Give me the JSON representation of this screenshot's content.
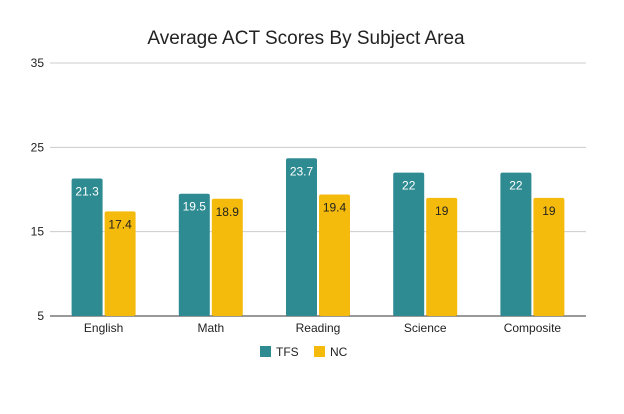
{
  "chart_data": {
    "type": "bar",
    "title": "Average ACT Scores By Subject Area",
    "xlabel": "",
    "ylabel": "",
    "ylim": [
      5,
      35
    ],
    "yticks": [
      5,
      15,
      25,
      35
    ],
    "grid": true,
    "legend_position": "bottom",
    "categories": [
      "English",
      "Math",
      "Reading",
      "Science",
      "Composite"
    ],
    "series": [
      {
        "name": "TFS",
        "color": "#2e8b92",
        "label_color": "#ffffff",
        "values": [
          21.3,
          19.5,
          23.7,
          22,
          22
        ]
      },
      {
        "name": "NC",
        "color": "#f5bb0c",
        "label_color": "#222222",
        "values": [
          17.4,
          18.9,
          19.4,
          19,
          19
        ]
      }
    ]
  }
}
